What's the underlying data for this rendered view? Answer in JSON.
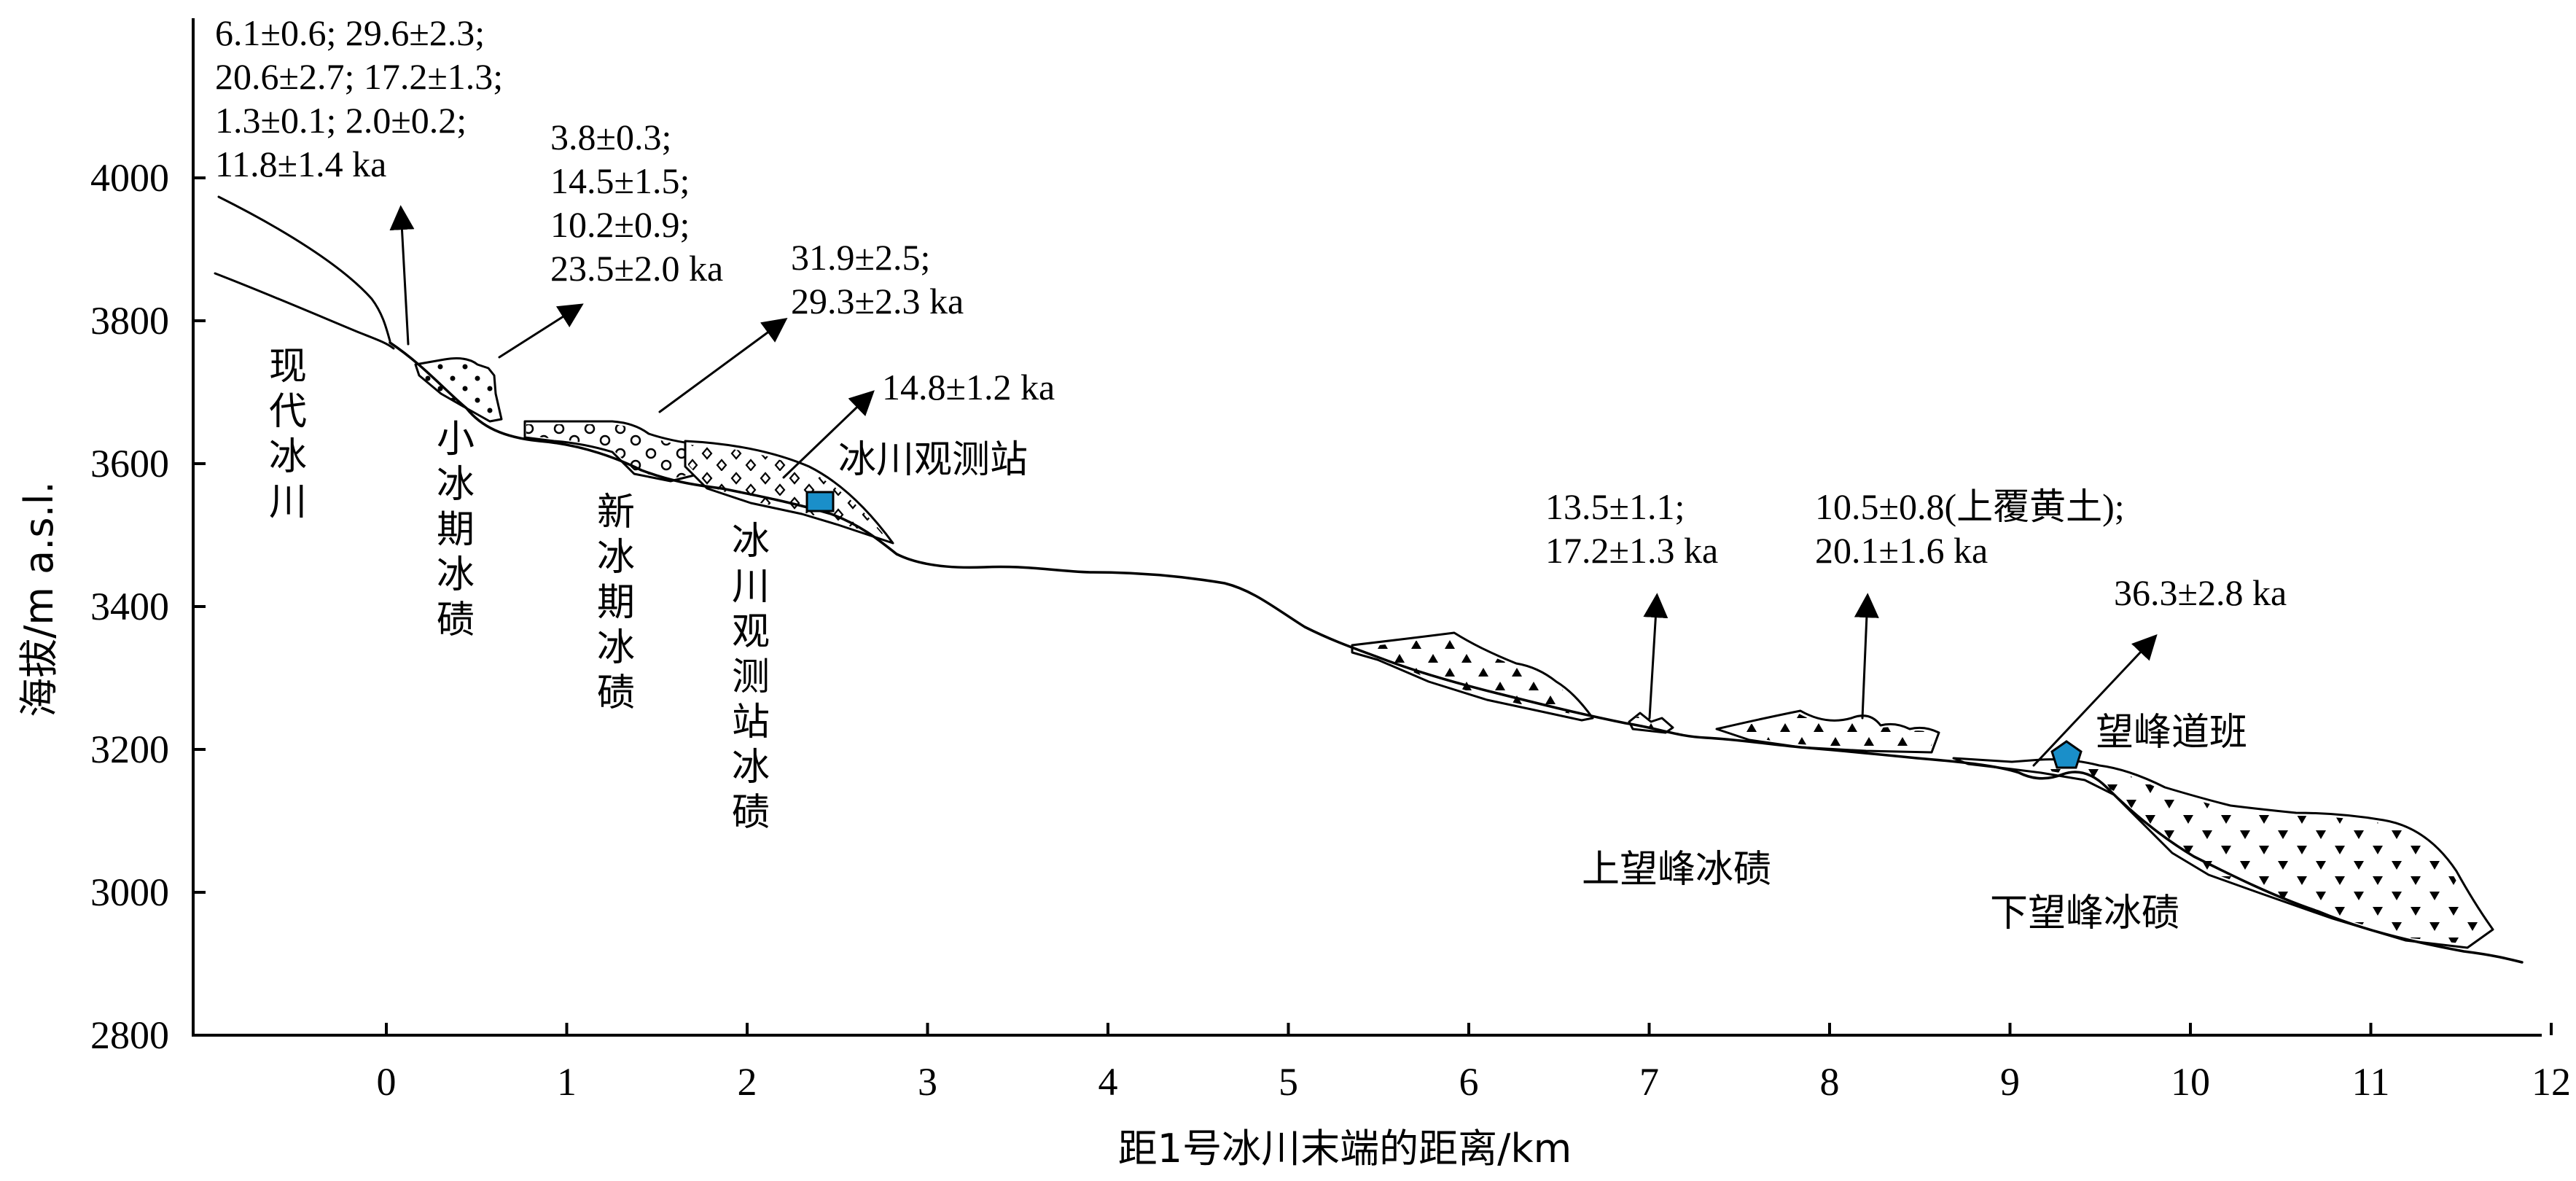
{
  "x_axis": {
    "label": "距1号冰川末端的距离/km",
    "ticks": [
      "0",
      "1",
      "2",
      "3",
      "4",
      "5",
      "6",
      "7",
      "8",
      "9",
      "10",
      "11",
      "12"
    ]
  },
  "y_axis": {
    "label": "海拔/m a.s.l.",
    "ticks": [
      "2800",
      "3000",
      "3200",
      "3400",
      "3600",
      "3800",
      "4000"
    ]
  },
  "units": {
    "modern_glacier": "现代冰川",
    "little_ice_age": "小冰期冰碛",
    "neoglacial": "新冰期冰碛",
    "station_moraine": "冰川观测站冰碛",
    "upper_wangfeng": "上望峰冰碛",
    "lower_wangfeng": "下望峰冰碛"
  },
  "sites": {
    "station": "冰川观测站",
    "wangfeng": "望峰道班"
  },
  "ages": {
    "a1": [
      "6.1±0.6; 29.6±2.3;",
      "20.6±2.7; 17.2±1.3;",
      "1.3±0.1; 2.0±0.2;",
      "11.8±1.4 ka"
    ],
    "a2": [
      "3.8±0.3;",
      "14.5±1.5;",
      "10.2±0.9;",
      "23.5±2.0 ka"
    ],
    "a3": [
      "31.9±2.5;",
      "29.3±2.3 ka"
    ],
    "a4": [
      "14.8±1.2 ka"
    ],
    "a5": [
      "13.5±1.1;",
      "17.2±1.3 ka"
    ],
    "a6": [
      "10.5±0.8(上覆黄土);",
      "20.1±1.6 ka"
    ],
    "a7": [
      "36.3±2.8 ka"
    ]
  },
  "colors": {
    "marker": "#1a8fc9",
    "line": "#000000"
  }
}
